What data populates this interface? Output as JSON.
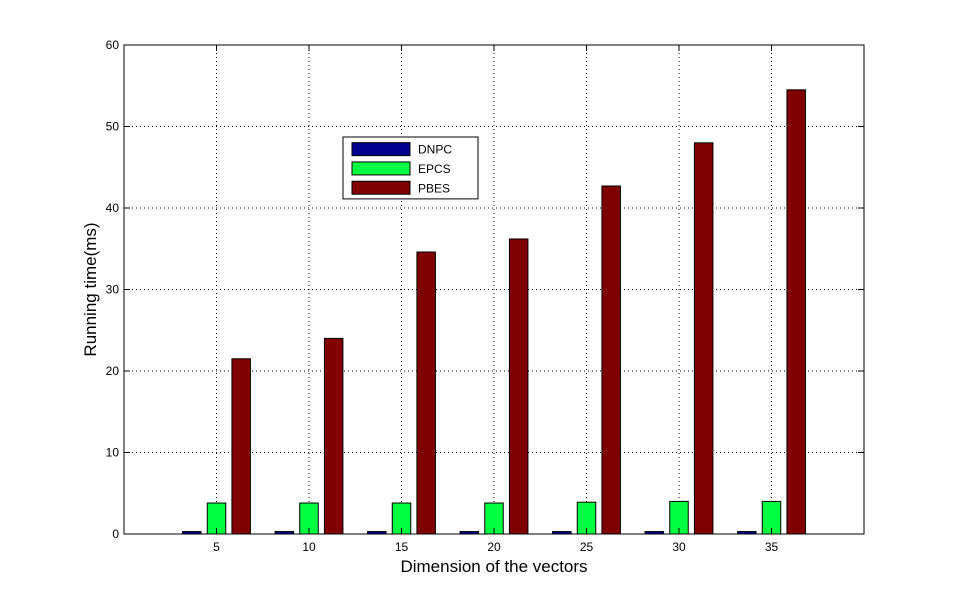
{
  "chart_data": {
    "type": "bar",
    "title": "",
    "xlabel": "Dimension of the vectors",
    "ylabel": "Running time(ms)",
    "ylim": [
      0,
      60
    ],
    "xlim": [
      0,
      40
    ],
    "yticks": [
      0,
      10,
      20,
      30,
      40,
      50,
      60
    ],
    "categories": [
      "5",
      "10",
      "15",
      "20",
      "25",
      "30",
      "35"
    ],
    "category_values": [
      5,
      10,
      15,
      20,
      25,
      30,
      35
    ],
    "grid": true,
    "legend_position": "upper-left-center",
    "series": [
      {
        "name": "DNPC",
        "color": "#00008f",
        "values": [
          0.3,
          0.3,
          0.3,
          0.3,
          0.3,
          0.3,
          0.3
        ]
      },
      {
        "name": "EPCS",
        "color": "#00ff40",
        "values": [
          3.8,
          3.8,
          3.8,
          3.8,
          3.9,
          4.0,
          4.0
        ]
      },
      {
        "name": "PBES",
        "color": "#800000",
        "values": [
          21.5,
          24.0,
          34.6,
          36.2,
          42.7,
          48.0,
          54.5
        ]
      }
    ]
  }
}
